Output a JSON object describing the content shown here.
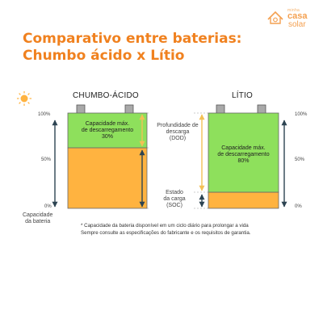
{
  "brand": {
    "tagline": "minha",
    "name_top": "casa",
    "name_bottom": "solar",
    "color": "#f4a050"
  },
  "title": {
    "line1": "Comparativo entre baterias:",
    "line2": "Chumbo ácido x Lítio",
    "color": "#f0811f"
  },
  "sun_icon": "sun-icon",
  "colors": {
    "green": "#8ee05c",
    "orange": "#ffb340",
    "terminal": "#a9a9a9",
    "arrow_dark": "#2d4452",
    "arrow_light": "#f3c056"
  },
  "scale": {
    "top": "100%",
    "mid": "50%",
    "bottom": "0%"
  },
  "y_axis_caption": {
    "line1": "Capacidade",
    "line2": "da bateria"
  },
  "lead_acid": {
    "header": "CHUMBO-ÁCIDO",
    "box_text": {
      "line1": "Capacidade máx.",
      "line2": "de descarregamento",
      "line3": "30%"
    },
    "dod_percent": 30
  },
  "lithium": {
    "header": "LÍTIO",
    "box_text": {
      "line1": "Capacidade máx.",
      "line2": "de descarregamento",
      "line3": "80%"
    },
    "dod_percent": 80
  },
  "dod_label": {
    "line1": "Profundidade de",
    "line2": "descarga",
    "line3": "(DOD)"
  },
  "soc_label": {
    "line1": "Estado",
    "line2": "da carga",
    "line3": "(SOC)"
  },
  "footnote": {
    "line1": "* Capacidade da bateria disponível em um ciclo diário para prolongar a vida",
    "line2": "Sempre consulte as especificações do fabricante e os requisitos de garantia."
  }
}
